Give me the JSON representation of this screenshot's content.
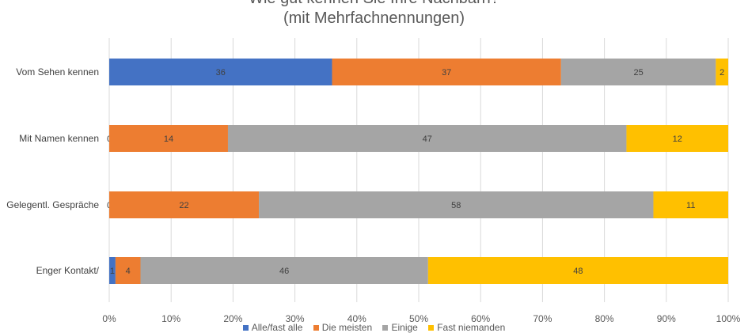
{
  "chart_data": {
    "type": "bar",
    "orientation": "horizontal",
    "stacked": "percent",
    "title": "Wie gut kennen Sie Ihre Nachbarn?",
    "subtitle": "(mit Mehrfachnennungen)",
    "categories": [
      "Vom Sehen kennen",
      "Mit Namen kennen",
      "Gelegentl. Gespräche",
      "Enger Kontakt/"
    ],
    "series": [
      {
        "name": "Alle/fast alle",
        "color": "#4472C4",
        "values": [
          36,
          0,
          0,
          1
        ]
      },
      {
        "name": "Die meisten",
        "color": "#ED7D31",
        "values": [
          37,
          14,
          22,
          4
        ]
      },
      {
        "name": "Einige",
        "color": "#A5A5A5",
        "values": [
          25,
          47,
          58,
          46
        ]
      },
      {
        "name": "Fast niemanden",
        "color": "#FFC000",
        "values": [
          2,
          12,
          11,
          48
        ]
      }
    ],
    "xaxis": {
      "ticks": [
        "0%",
        "10%",
        "20%",
        "30%",
        "40%",
        "50%",
        "60%",
        "70%",
        "80%",
        "90%",
        "100%"
      ],
      "range": [
        0,
        100
      ]
    },
    "grid": true,
    "legend": "bottom"
  }
}
